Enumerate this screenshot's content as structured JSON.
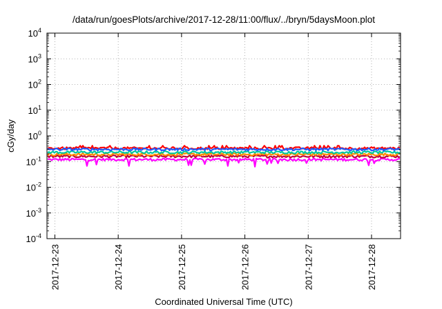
{
  "chart_data": {
    "type": "line",
    "title": "/data/run/goesPlots/archive/2017-12-28/11:00/flux/../bryn/5daysMoon.plot",
    "xlabel": "Coordinated Universal Time (UTC)",
    "ylabel": "cGy/day",
    "y_scale": "log",
    "ylim": [
      0.0001,
      10000
    ],
    "xlim": [
      "2017-12-22T21:00",
      "2017-12-28T11:00"
    ],
    "grid": true,
    "x_tick_labels": [
      "2017-12-23",
      "2017-12-24",
      "2017-12-25",
      "2017-12-26",
      "2017-12-27",
      "2017-12-28"
    ],
    "y_ticks": [
      {
        "base": "10",
        "exp": "4",
        "value": 10000
      },
      {
        "base": "10",
        "exp": "3",
        "value": 1000
      },
      {
        "base": "10",
        "exp": "2",
        "value": 100
      },
      {
        "base": "10",
        "exp": "1",
        "value": 10
      },
      {
        "base": "10",
        "exp": "0",
        "value": 1
      },
      {
        "base": "10",
        "exp": "-1",
        "value": 0.1
      },
      {
        "base": "10",
        "exp": "-2",
        "value": 0.01
      },
      {
        "base": "10",
        "exp": "-3",
        "value": 0.001
      },
      {
        "base": "10",
        "exp": "-4",
        "value": 0.0001
      }
    ],
    "series": [
      {
        "color": "#ff00ff",
        "approx_level": 0.12,
        "values": "approximately flat with short dips near 0.06-0.08"
      },
      {
        "color": "#c0003c",
        "approx_level": 0.16,
        "values": "approximately flat"
      },
      {
        "color": "#ff8c00",
        "approx_level": 0.19,
        "values": "approximately flat"
      },
      {
        "color": "#00c8a0",
        "approx_level": 0.23,
        "values": "approximately flat"
      },
      {
        "color": "#ff0000",
        "approx_level": 0.33,
        "values": "approximately flat, noisy"
      },
      {
        "color": "#1e5aff",
        "approx_level": 0.3,
        "values": "approximately flat, noisy"
      }
    ]
  }
}
